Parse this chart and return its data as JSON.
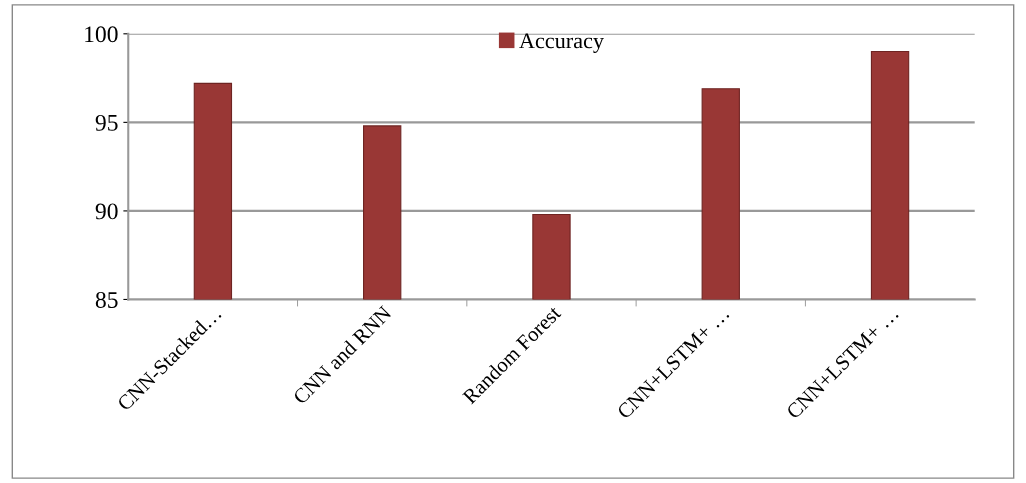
{
  "chart_data": {
    "type": "bar",
    "categories": [
      "CNN-Stacked…",
      "CNN and RNN",
      "Random Forest",
      "CNN+LSTM+ …",
      "CNN+LSTM+ …"
    ],
    "series": [
      {
        "name": "Accuracy",
        "color": "#993735",
        "values": [
          97.2,
          94.8,
          89.8,
          96.9,
          99.0
        ]
      }
    ],
    "ylim": [
      85,
      100
    ],
    "yticks": [
      85,
      90,
      95,
      100
    ],
    "grid": "y",
    "legend": "top"
  }
}
